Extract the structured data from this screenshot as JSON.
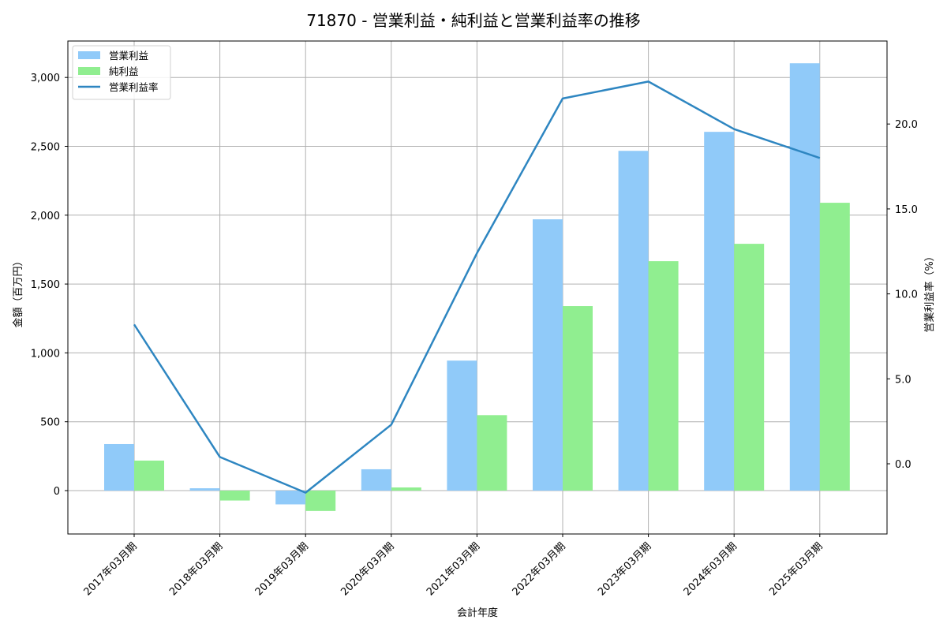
{
  "chart_data": {
    "type": "bar",
    "title": "71870 - 営業利益・純利益と営業利益率の推移",
    "xlabel": "会計年度",
    "ylabel": "金額（百万円）",
    "y2label": "営業利益率（%）",
    "categories": [
      "2017年03月期",
      "2018年03月期",
      "2019年03月期",
      "2020年03月期",
      "2021年03月期",
      "2022年03月期",
      "2023年03月期",
      "2024年03月期",
      "2025年03月期"
    ],
    "series": [
      {
        "name": "営業利益",
        "type": "bar",
        "axis": "left",
        "color": "#90caf9",
        "values": [
          338,
          17,
          -100,
          155,
          944,
          1970,
          2467,
          2605,
          3103
        ]
      },
      {
        "name": "純利益",
        "type": "bar",
        "axis": "left",
        "color": "#90ee90",
        "values": [
          218,
          -72,
          -148,
          23,
          548,
          1340,
          1666,
          1792,
          2090
        ]
      },
      {
        "name": "営業利益率",
        "type": "line",
        "axis": "right",
        "color": "#2e86c1",
        "values": [
          8.2,
          0.4,
          -1.7,
          2.3,
          12.4,
          21.5,
          22.5,
          19.7,
          18.0
        ]
      }
    ],
    "ylim": [
      -310,
      3260
    ],
    "y2lim": [
      -4.0,
      25.0
    ],
    "yticks": [
      0,
      500,
      1000,
      1500,
      2000,
      2500,
      3000
    ],
    "ytick_labels": [
      "0",
      "500",
      "1,000",
      "1,500",
      "2,000",
      "2,500",
      "3,000"
    ],
    "y2ticks": [
      0,
      5,
      10,
      15,
      20
    ],
    "y2tick_labels": [
      "0.0",
      "5.0",
      "10.0",
      "15.0",
      "20.0"
    ],
    "grid": true,
    "legend_position": "upper left"
  }
}
